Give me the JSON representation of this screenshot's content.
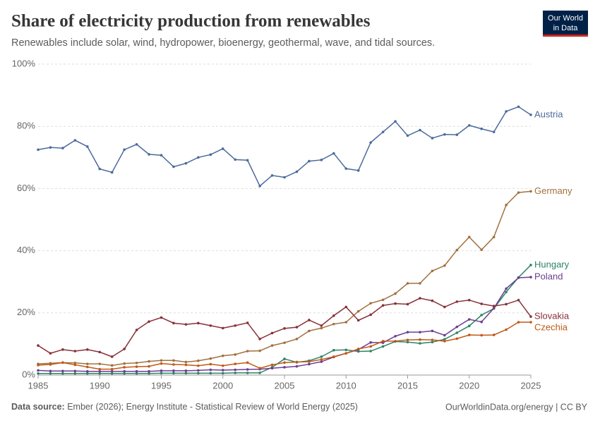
{
  "logo": {
    "line1": "Our World",
    "line2": "in Data"
  },
  "chart_data": {
    "type": "line",
    "title": "Share of electricity production from renewables",
    "subtitle": "Renewables include solar, wind, hydropower, bioenergy, geothermal, wave, and tidal sources.",
    "source_label": "Data source:",
    "source": "Ember (2026); Energy Institute - Statistical Review of World Energy (2025)",
    "footer_right": "OurWorldinData.org/energy | CC BY",
    "x": [
      1985,
      1986,
      1987,
      1988,
      1989,
      1990,
      1991,
      1992,
      1993,
      1994,
      1995,
      1996,
      1997,
      1998,
      1999,
      2000,
      2001,
      2002,
      2003,
      2004,
      2005,
      2006,
      2007,
      2008,
      2009,
      2010,
      2011,
      2012,
      2013,
      2014,
      2015,
      2016,
      2017,
      2018,
      2019,
      2020,
      2021,
      2022,
      2023,
      2024,
      2025
    ],
    "xlim": [
      1985,
      2025
    ],
    "xticks": [
      1985,
      1990,
      1995,
      2000,
      2005,
      2010,
      2015,
      2020,
      2025
    ],
    "ylim": [
      0,
      100
    ],
    "yticks": [
      {
        "value": 0,
        "label": "0%"
      },
      {
        "value": 20,
        "label": "20%"
      },
      {
        "value": 40,
        "label": "40%"
      },
      {
        "value": 60,
        "label": "60%"
      },
      {
        "value": 80,
        "label": "80%"
      },
      {
        "value": 100,
        "label": "100%"
      }
    ],
    "grid": true,
    "series": [
      {
        "name": "Austria",
        "color": "#4c6a9c",
        "values": [
          72.5,
          73.2,
          73,
          75.5,
          73.5,
          66.3,
          65.2,
          72.5,
          74.2,
          71,
          70.7,
          67,
          68.1,
          70,
          70.9,
          72.8,
          69.3,
          69.1,
          60.8,
          64.2,
          63.6,
          65.4,
          68.8,
          69.2,
          71.3,
          66.4,
          65.8,
          74.8,
          78.2,
          81.6,
          77,
          78.8,
          76.2,
          77.4,
          77.3,
          80.3,
          79.2,
          78.2,
          84.8,
          86.3,
          83.7
        ]
      },
      {
        "name": "Germany",
        "color": "#a2703f",
        "values": [
          3.6,
          3.8,
          4.0,
          3.9,
          3.6,
          3.6,
          3.1,
          3.7,
          3.9,
          4.4,
          4.7,
          4.7,
          4.2,
          4.6,
          5.3,
          6.2,
          6.6,
          7.7,
          7.8,
          9.5,
          10.4,
          11.6,
          14.2,
          15.1,
          16.4,
          17,
          20.5,
          23.1,
          24.2,
          26.2,
          29.5,
          29.5,
          33.5,
          35.2,
          40.2,
          44.4,
          40.3,
          44.4,
          54.7,
          58.7,
          59.1
        ]
      },
      {
        "name": "Hungary",
        "color": "#2c8465",
        "values": [
          0.5,
          0.5,
          0.5,
          0.5,
          0.5,
          0.5,
          0.5,
          0.5,
          0.5,
          0.5,
          0.6,
          0.6,
          0.6,
          0.6,
          0.6,
          0.6,
          0.7,
          0.7,
          0.7,
          2.5,
          5.2,
          4.1,
          4.6,
          5.9,
          8.0,
          8.1,
          7.6,
          7.7,
          9.2,
          10.8,
          10.6,
          10.2,
          10.6,
          11.5,
          13.6,
          15.8,
          19.3,
          21.4,
          26.7,
          31.4,
          35.4
        ]
      },
      {
        "name": "Poland",
        "color": "#6d3e91",
        "values": [
          1.5,
          1.3,
          1.3,
          1.3,
          1.2,
          1.2,
          1.2,
          1.2,
          1.2,
          1.2,
          1.4,
          1.4,
          1.4,
          1.5,
          1.7,
          1.6,
          1.7,
          1.8,
          1.9,
          2.2,
          2.5,
          2.8,
          3.5,
          4.3,
          5.8,
          7.0,
          8.2,
          10.5,
          10.4,
          12.5,
          13.8,
          13.8,
          14.2,
          12.8,
          15.5,
          17.9,
          17.1,
          21.5,
          27.8,
          31.3,
          31.5
        ]
      },
      {
        "name": "Slovakia",
        "color": "#883039",
        "values": [
          9.5,
          7.0,
          8.2,
          7.7,
          8.2,
          7.4,
          5.9,
          8.4,
          14.5,
          17.2,
          18.5,
          16.7,
          16.3,
          16.7,
          15.9,
          15.1,
          15.9,
          16.8,
          11.6,
          13.5,
          15.0,
          15.4,
          17.7,
          15.9,
          19.1,
          21.9,
          17.6,
          19.4,
          22.4,
          23.0,
          22.8,
          24.7,
          23.9,
          21.9,
          23.6,
          24.1,
          22.9,
          22.2,
          22.8,
          24.1,
          18.8
        ]
      },
      {
        "name": "Czechia",
        "color": "#c05917",
        "values": [
          3.2,
          3.4,
          4.0,
          3.3,
          2.6,
          1.9,
          1.9,
          2.5,
          2.7,
          2.8,
          3.7,
          3.4,
          3.3,
          3.0,
          3.5,
          3.0,
          3.6,
          4.0,
          2.2,
          3.3,
          4.0,
          4.2,
          4.3,
          5.0,
          5.9,
          7.0,
          8.4,
          9.2,
          10.9,
          10.9,
          11.3,
          11.4,
          11.3,
          10.9,
          11.7,
          12.9,
          12.8,
          12.9,
          14.6,
          17.0,
          17.0
        ]
      }
    ]
  }
}
